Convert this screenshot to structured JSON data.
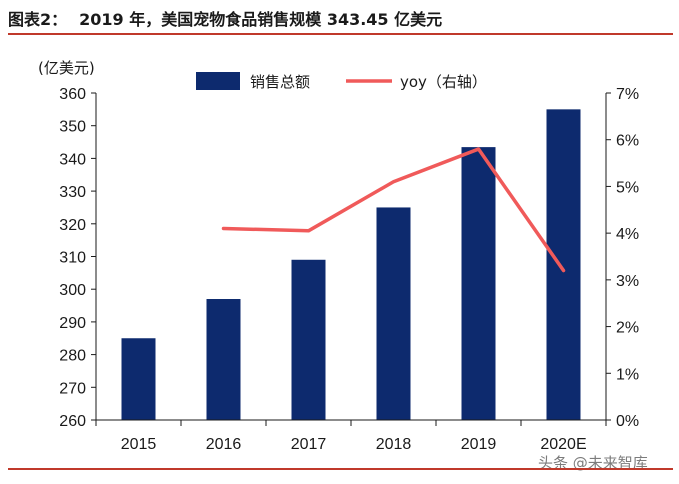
{
  "header": {
    "figure_label": "图表2：",
    "title": "2019 年，美国宠物食品销售规模 343.45 亿美元"
  },
  "watermark": "头条 @未来智库",
  "colors": {
    "bar": "#0d2a6e",
    "line": "#f05a5a",
    "rule": "#c0392b"
  },
  "chart_data": {
    "type": "bar",
    "categories": [
      "2015",
      "2016",
      "2017",
      "2018",
      "2019",
      "2020E"
    ],
    "series": [
      {
        "name": "销售总额",
        "type": "bar",
        "axis": "left",
        "values": [
          285,
          297,
          309,
          325,
          343.45,
          355
        ]
      },
      {
        "name": "yoy（右轴）",
        "type": "line",
        "axis": "right",
        "values": [
          null,
          4.1,
          4.05,
          5.1,
          5.8,
          3.2
        ]
      }
    ],
    "ylabel": "(亿美元)",
    "ylim": [
      260,
      360
    ],
    "yticks": [
      "260",
      "270",
      "280",
      "290",
      "300",
      "310",
      "320",
      "330",
      "340",
      "350",
      "360"
    ],
    "y2lim": [
      0,
      7
    ],
    "y2ticks": [
      "0%",
      "1%",
      "2%",
      "3%",
      "4%",
      "5%",
      "6%",
      "7%"
    ],
    "legend_position": "top",
    "grid": false
  }
}
